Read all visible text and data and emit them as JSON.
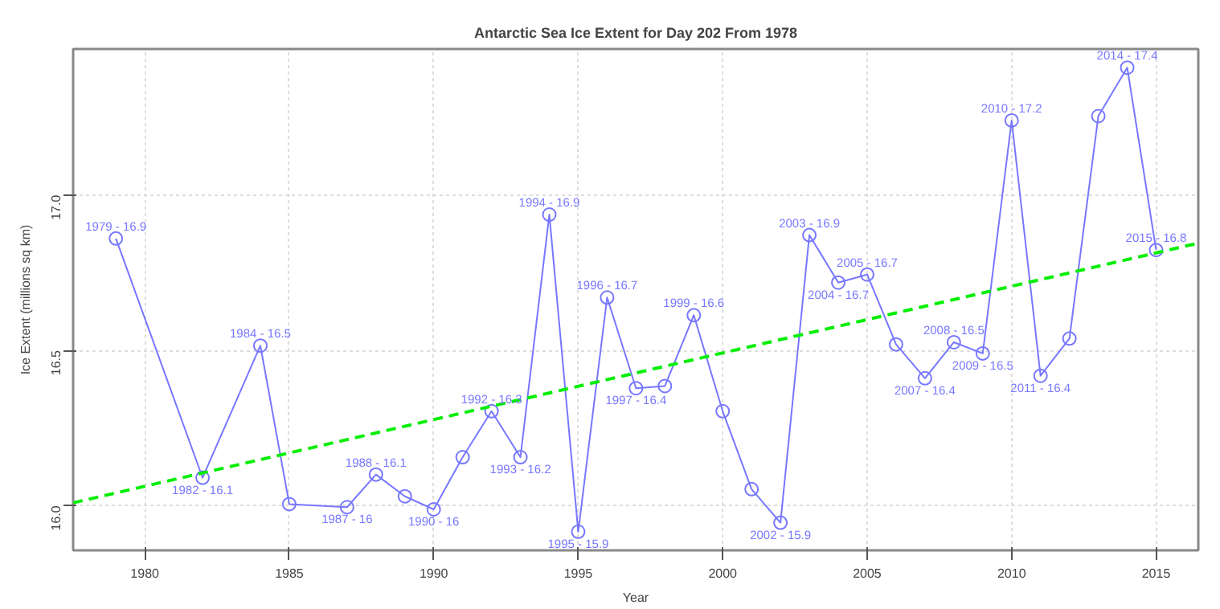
{
  "chart_data": {
    "type": "line",
    "title": "Antarctic Sea Ice Extent for Day 202 From 1978",
    "xlabel": "Year",
    "ylabel": "Ice Extent (millions sq km)",
    "xlim": [
      1977.52,
      2016.46
    ],
    "ylim": [
      15.856,
      17.47
    ],
    "xticks": [
      1980,
      1985,
      1990,
      1995,
      2000,
      2005,
      2010,
      2015
    ],
    "yticks": [
      {
        "value": 16,
        "label": "16.0"
      },
      {
        "value": 16.5,
        "label": "16.5"
      },
      {
        "value": 17,
        "label": "17.0"
      }
    ],
    "grid": true,
    "marker": "circle",
    "series": [
      {
        "color": "#7777ff",
        "x": [
          1979,
          1982,
          1984,
          1985,
          1987,
          1988,
          1989,
          1990,
          1991,
          1992,
          1993,
          1994,
          1995,
          1996,
          1997,
          1998,
          1999,
          2000,
          2001,
          2002,
          2003,
          2004,
          2005,
          2006,
          2007,
          2008,
          2009,
          2010,
          2011,
          2012,
          2013,
          2014,
          2015
        ],
        "values": [
          16.86,
          16.09,
          16.515,
          16.005,
          15.995,
          16.1,
          16.03,
          15.988,
          16.156,
          16.304,
          16.156,
          16.937,
          15.916,
          16.67,
          16.378,
          16.385,
          16.613,
          16.304,
          16.053,
          15.945,
          16.871,
          16.718,
          16.744,
          16.519,
          16.41,
          16.526,
          16.49,
          17.24,
          16.418,
          16.538,
          17.254,
          17.41,
          16.823
        ]
      },
      {
        "type": "line",
        "color": "#00ee00",
        "line_style": "dashed",
        "marker": "none",
        "x": [
          1977.52,
          2016.46
        ],
        "values": [
          16.009,
          16.845
        ]
      }
    ],
    "annotations": [
      {
        "text": "1979 - 16.9",
        "x": 1979,
        "y": 16.86
      },
      {
        "text": "1982 - 16.1",
        "x": 1982,
        "y": 16.09
      },
      {
        "text": "1984 - 16.5",
        "x": 1984,
        "y": 16.515
      },
      {
        "text": "1987 - 16",
        "x": 1987,
        "y": 15.995
      },
      {
        "text": "1988 - 16.1",
        "x": 1988,
        "y": 16.1
      },
      {
        "text": "1990 - 16",
        "x": 1990,
        "y": 15.988
      },
      {
        "text": "1992 - 16.3",
        "x": 1992,
        "y": 16.304
      },
      {
        "text": "1993 - 16.2",
        "x": 1993,
        "y": 16.156
      },
      {
        "text": "1994 - 16.9",
        "x": 1994,
        "y": 16.937
      },
      {
        "text": "1995 - 15.9",
        "x": 1995,
        "y": 15.916
      },
      {
        "text": "1996 - 16.7",
        "x": 1996,
        "y": 16.67
      },
      {
        "text": "1997 - 16.4",
        "x": 1997,
        "y": 16.378
      },
      {
        "text": "1999 - 16.6",
        "x": 1999,
        "y": 16.613
      },
      {
        "text": "2002 - 15.9",
        "x": 2002,
        "y": 15.945
      },
      {
        "text": "2003 - 16.9",
        "x": 2003,
        "y": 16.871
      },
      {
        "text": "2004 - 16.7",
        "x": 2004,
        "y": 16.718
      },
      {
        "text": "2005 - 16.7",
        "x": 2005,
        "y": 16.744
      },
      {
        "text": "2007 - 16.4",
        "x": 2007,
        "y": 16.41
      },
      {
        "text": "2008 - 16.5",
        "x": 2008,
        "y": 16.526
      },
      {
        "text": "2009 - 16.5",
        "x": 2009,
        "y": 16.49
      },
      {
        "text": "2010 - 17.2",
        "x": 2010,
        "y": 17.24
      },
      {
        "text": "2011 - 16.4",
        "x": 2011,
        "y": 16.418
      },
      {
        "text": "2014 - 17.4",
        "x": 2014,
        "y": 17.41
      },
      {
        "text": "2015 - 16.8",
        "x": 2015,
        "y": 16.823
      }
    ]
  }
}
